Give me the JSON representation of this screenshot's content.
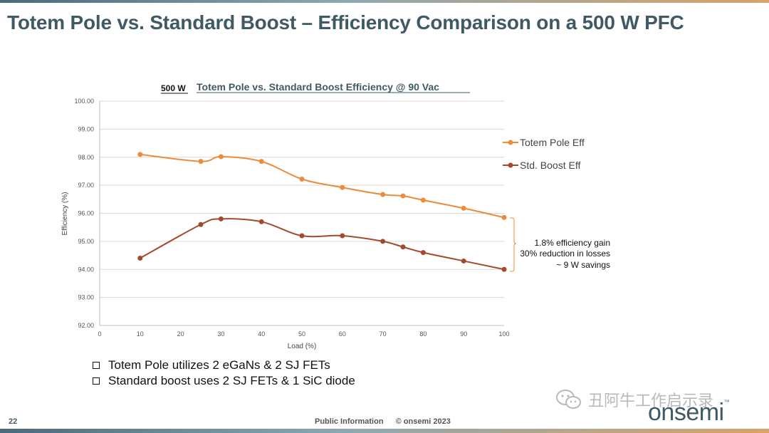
{
  "slide": {
    "title": "Totem Pole vs. Standard Boost – Efficiency Comparison on a 500 W PFC",
    "page_number": "22",
    "footer_label": "Public Information",
    "copyright": "© onsemi 2023",
    "brand": "onsemi",
    "brand_mark": "™",
    "watermark": "丑阿牛工作启示录",
    "bullets": [
      "Totem Pole utilizes 2 eGaNs & 2 SJ FETs",
      "Standard boost uses 2 SJ FETs & 1 SiC diode"
    ],
    "colors": {
      "title": "#3f5a64",
      "totem_pole": "#ec8b3a",
      "std_boost": "#a34a2c"
    }
  },
  "chart_data": {
    "type": "line",
    "power_label": "500 W",
    "title": "Totem Pole vs. Standard Boost Efficiency @ 90 Vac",
    "xlabel": "Load (%)",
    "ylabel": "Efficiency (%)",
    "xlim": [
      0,
      100
    ],
    "ylim": [
      92,
      100
    ],
    "x_ticks": [
      "0",
      "10",
      "20",
      "30",
      "40",
      "50",
      "60",
      "70",
      "80",
      "90",
      "100"
    ],
    "y_ticks": [
      "100.00",
      "99.00",
      "98.00",
      "97.00",
      "96.00",
      "95.00",
      "94.00",
      "93.00",
      "92.00"
    ],
    "grid": "horizontal",
    "legend_position": "right",
    "series": [
      {
        "name": "Totem Pole Eff",
        "color": "#ec8b3a",
        "x": [
          10,
          25,
          30,
          40,
          50,
          60,
          70,
          75,
          80,
          90,
          100
        ],
        "values": [
          98.1,
          97.85,
          98.02,
          97.85,
          97.22,
          96.92,
          96.67,
          96.62,
          96.47,
          96.18,
          95.85
        ]
      },
      {
        "name": "Std. Boost Eff",
        "color": "#a34a2c",
        "x": [
          10,
          25,
          30,
          40,
          50,
          60,
          70,
          75,
          80,
          90,
          100
        ],
        "values": [
          94.4,
          95.6,
          95.8,
          95.7,
          95.2,
          95.2,
          95.0,
          94.8,
          94.6,
          94.3,
          94.0
        ]
      }
    ],
    "annotation": {
      "lines": [
        "1.8% efficiency gain",
        "30% reduction in losses",
        "~ 9 W savings"
      ],
      "x": 100,
      "y_range": [
        94.0,
        95.85
      ]
    }
  }
}
